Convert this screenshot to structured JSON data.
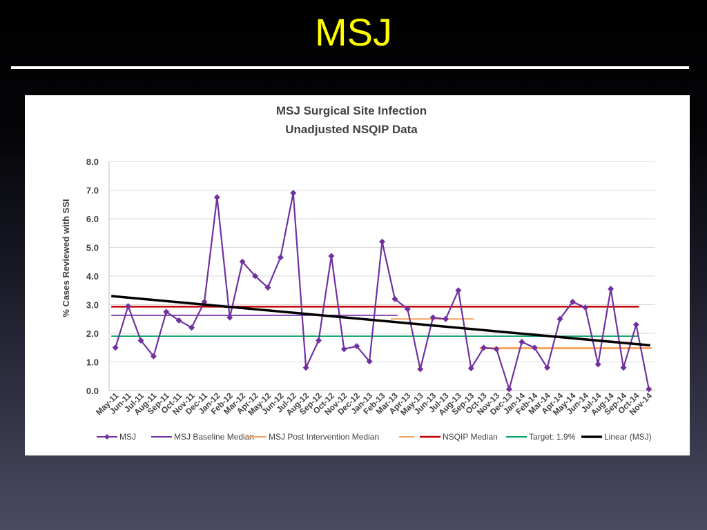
{
  "slide": {
    "title": "MSJ"
  },
  "colors": {
    "msj": "#7030a0",
    "baseline": "#7030a0",
    "post_intervention": "#f4a460",
    "nsqip": "#c00000",
    "target": "#00a060",
    "linear": "#000000",
    "title_text": "#ffff00"
  },
  "chart_data": {
    "type": "line",
    "title_lines": [
      "MSJ Surgical Site Infection",
      "Unadjusted NSQIP Data"
    ],
    "xlabel": "",
    "ylabel": "% Cases Reviewed with SSI",
    "ylim": [
      0,
      8
    ],
    "yticks": [
      "0.0",
      "1.0",
      "2.0",
      "3.0",
      "4.0",
      "5.0",
      "6.0",
      "7.0",
      "8.0"
    ],
    "grid": true,
    "legend_position": "bottom",
    "categories": [
      "May-11",
      "Jun-11",
      "Jul-11",
      "Aug-11",
      "Sep-11",
      "Oct-11",
      "Nov-11",
      "Dec-11",
      "Jan-12",
      "Feb-12",
      "Mar-12",
      "Apr-12",
      "May-12",
      "Jun-12",
      "Jul-12",
      "Aug-12",
      "Sep-12",
      "Oct-12",
      "Nov-12",
      "Dec-12",
      "Jan-13",
      "Feb-13",
      "Mar-13",
      "Apr-13",
      "May-13",
      "Jun-13",
      "Jul-13",
      "Aug-13",
      "Sep-13",
      "Oct-13",
      "Nov-13",
      "Dec-13",
      "Jan-14",
      "Feb-14",
      "Mar-14",
      "Apr-14",
      "May-14",
      "Jun-14",
      "Jul-14",
      "Aug-14",
      "Sep-14",
      "Oct-14",
      "Nov-14"
    ],
    "series": [
      {
        "name": "MSJ",
        "values": [
          1.5,
          2.95,
          1.75,
          1.2,
          2.75,
          2.45,
          2.2,
          3.1,
          6.75,
          2.55,
          4.5,
          4.0,
          3.6,
          4.65,
          6.9,
          0.8,
          1.75,
          4.7,
          1.45,
          1.55,
          1.02,
          5.2,
          3.2,
          2.85,
          0.75,
          2.55,
          2.5,
          3.5,
          0.78,
          1.5,
          1.45,
          0.05,
          1.7,
          1.5,
          0.8,
          2.5,
          3.1,
          2.9,
          0.92,
          3.55,
          0.8,
          2.3,
          0.05
        ]
      }
    ],
    "reference_lines": [
      {
        "name": "MSJ Baseline Median",
        "value": 2.63,
        "from": "May-11",
        "to": "Mar-13"
      },
      {
        "name": "MSJ Post Intervention Median",
        "value": 2.5,
        "from": "Mar-13",
        "to": "Sep-13"
      },
      {
        "name": "",
        "value": 1.48,
        "from": "Oct-13",
        "to": "Nov-14"
      },
      {
        "name": "NSQIP Median",
        "value": 2.93,
        "from": "May-11",
        "to": "Oct-14"
      },
      {
        "name": "Target: 1.9%",
        "value": 1.9,
        "from": "May-11",
        "to": "Oct-14"
      }
    ],
    "trendline": {
      "name": "Linear (MSJ)",
      "start": 3.3,
      "end": 1.58
    },
    "legend": [
      "MSJ",
      "MSJ Baseline Median",
      "MSJ Post Intervention Median",
      "",
      "NSQIP Median",
      "Target: 1.9%",
      "Linear (MSJ)"
    ]
  }
}
